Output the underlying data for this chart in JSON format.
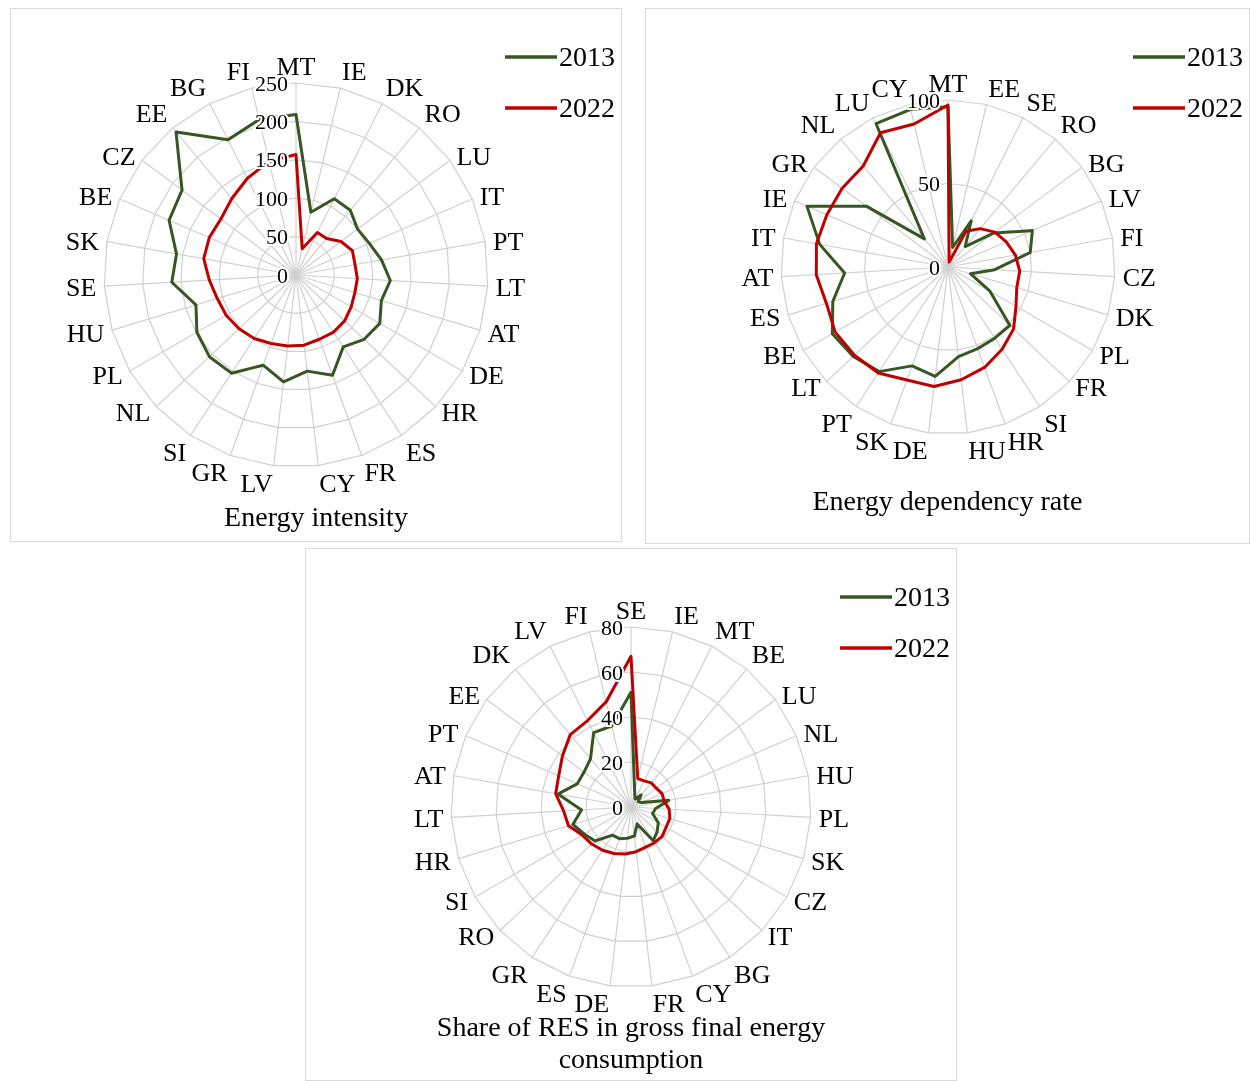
{
  "chart_data": [
    {
      "type": "radar",
      "title": "Energy intensity",
      "categories": [
        "MT",
        "IE",
        "DK",
        "RO",
        "LU",
        "IT",
        "PT",
        "LT",
        "AT",
        "DE",
        "HR",
        "ES",
        "FR",
        "CY",
        "LV",
        "GR",
        "SI",
        "NL",
        "PL",
        "HU",
        "SE",
        "SK",
        "BE",
        "CZ",
        "EE",
        "BG",
        "FI"
      ],
      "series": [
        {
          "name": "2013",
          "color": "#375623",
          "values": [
            209,
            84,
            111,
            110,
            100,
            104,
            113,
            123,
            116,
            126,
            122,
            112,
            139,
            126,
            140,
            125,
            153,
            155,
            149,
            136,
            162,
            158,
            180,
            185,
            243,
            197,
            208
          ]
        },
        {
          "name": "2022",
          "color": "#c00000",
          "values": [
            157,
            35,
            62,
            62,
            73,
            80,
            78,
            80,
            80,
            83,
            87,
            89,
            89,
            92,
            93,
            95,
            99,
            102,
            105,
            107,
            113,
            122,
            123,
            122,
            130,
            141,
            152
          ]
        }
      ],
      "ylim": [
        0,
        250
      ],
      "yticks": [
        0,
        50,
        100,
        150,
        200,
        250
      ],
      "grid": true,
      "legend": "top right",
      "marker": "none"
    },
    {
      "type": "radar",
      "title": "Energy dependency rate",
      "categories": [
        "MT",
        "EE",
        "SE",
        "RO",
        "BG",
        "LV",
        "FI",
        "CZ",
        "DK",
        "PL",
        "FR",
        "SI",
        "HR",
        "HU",
        "DE",
        "SK",
        "PT",
        "LT",
        "BE",
        "ES",
        "AT",
        "IT",
        "IE",
        "GR",
        "NL",
        "LU",
        "CY"
      ],
      "series": [
        {
          "name": "2013",
          "color": "#375623",
          "values": [
            96,
            12,
            31,
            16,
            34,
            55,
            50,
            28,
            14,
            29,
            51,
            51,
            52,
            54,
            66,
            63,
            75,
            78,
            80,
            72,
            62,
            78,
            92,
            61,
            22,
            96,
            97
          ]
        },
        {
          "name": "2022",
          "color": "#c00000",
          "values": [
            97,
            3,
            24,
            30,
            35,
            38,
            41,
            43,
            43,
            47,
            54,
            59,
            64,
            68,
            72,
            72,
            76,
            77,
            78,
            76,
            79,
            80,
            79,
            79,
            79,
            90,
            88
          ]
        }
      ],
      "ylim": [
        0,
        100
      ],
      "yticks": [
        0,
        50,
        100
      ],
      "grid": true,
      "legend": "top right",
      "marker": "none"
    },
    {
      "type": "radar",
      "title": "Share of RES in gross final energy consumption",
      "categories": [
        "SE",
        "IE",
        "MT",
        "BE",
        "LU",
        "NL",
        "HU",
        "PL",
        "SK",
        "CZ",
        "IT",
        "BG",
        "CY",
        "FR",
        "DE",
        "ES",
        "GR",
        "RO",
        "SI",
        "HR",
        "LT",
        "AT",
        "PT",
        "EE",
        "DK",
        "LV",
        "FI"
      ],
      "series": [
        {
          "name": "2013",
          "color": "#375623",
          "values": [
            51,
            7,
            4,
            7,
            4,
            5,
            17,
            11,
            10,
            14,
            16,
            18,
            8,
            13,
            14,
            15,
            15,
            22,
            24,
            27,
            22,
            33,
            26,
            26,
            28,
            37,
            37
          ]
        },
        {
          "name": "2022",
          "color": "#c00000",
          "values": [
            67,
            13,
            13,
            14,
            14,
            15,
            15,
            17,
            18,
            18,
            19,
            19,
            19,
            20,
            21,
            22,
            23,
            24,
            25,
            29,
            30,
            34,
            35,
            38,
            42,
            43,
            48
          ]
        }
      ],
      "ylim": [
        0,
        80
      ],
      "yticks": [
        0,
        20,
        40,
        60,
        80
      ],
      "grid": true,
      "legend": "top right",
      "marker": "none"
    }
  ]
}
